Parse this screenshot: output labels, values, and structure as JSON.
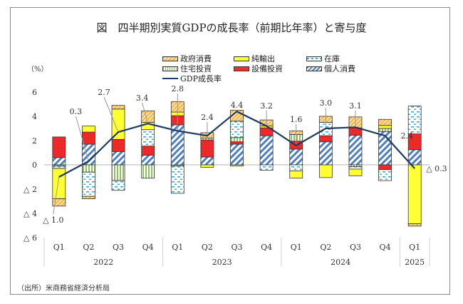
{
  "chart_data": {
    "type": "bar",
    "subtype": "stacked-bar-with-line",
    "title": "図　四半期別実質GDPの成長率（前期比年率）と寄与度",
    "ylabel": "（%）",
    "xlabel": "",
    "ylim": [
      -6,
      6
    ],
    "yticks": [
      6,
      4,
      2,
      0,
      -2,
      -4,
      -6
    ],
    "ytick_labels": [
      "6",
      "4",
      "2",
      "0",
      "△ 2",
      "△ 4",
      "△ 6"
    ],
    "grid": false,
    "legend_position": "top-center",
    "categories": [
      "Q1",
      "Q2",
      "Q3",
      "Q4",
      "Q1",
      "Q2",
      "Q3",
      "Q4",
      "Q1",
      "Q2",
      "Q3",
      "Q4",
      "Q1"
    ],
    "year_groups": [
      {
        "label": "2022",
        "count": 4
      },
      {
        "label": "2023",
        "count": 4
      },
      {
        "label": "2024",
        "count": 4
      },
      {
        "label": "2025",
        "count": 1
      }
    ],
    "series": [
      {
        "name": "個人消費",
        "key": "consumption",
        "color": "#4f7fc0",
        "pattern": "diag",
        "values": [
          0.6,
          1.7,
          1.1,
          0.8,
          3.3,
          0.65,
          1.7,
          2.4,
          1.3,
          1.9,
          2.45,
          2.75,
          1.25
        ]
      },
      {
        "name": "設備投資",
        "key": "capex",
        "color": "#f03030",
        "pattern": "dots",
        "values": [
          1.7,
          1.0,
          1.0,
          0.75,
          0.75,
          1.4,
          0.2,
          0.65,
          0.65,
          0.5,
          0.6,
          -0.4,
          1.3
        ]
      },
      {
        "name": "住宅投資",
        "key": "housing",
        "color": "#8fc060",
        "pattern": "vlines",
        "values": [
          -0.1,
          -0.6,
          -1.3,
          -1.1,
          -0.1,
          0.15,
          0.35,
          0.0,
          0.55,
          0.0,
          -0.15,
          0.25,
          0.0
        ]
      },
      {
        "name": "在庫",
        "key": "inventory",
        "color": "#3aaee0",
        "pattern": "dashes",
        "values": [
          -0.2,
          -2.0,
          -0.8,
          1.35,
          -2.25,
          0.0,
          1.35,
          -0.45,
          -0.5,
          1.1,
          -0.2,
          -0.9,
          2.3
        ]
      },
      {
        "name": "純輸出",
        "key": "net_exports",
        "color": "#ffff33",
        "pattern": "solid",
        "values": [
          -2.5,
          0.5,
          2.5,
          0.6,
          0.3,
          -0.2,
          -0.1,
          0.15,
          -0.6,
          -1.05,
          -0.55,
          0.25,
          -4.85
        ]
      },
      {
        "name": "政府消費",
        "key": "government",
        "color": "#f5b54a",
        "pattern": "diag-light",
        "values": [
          -0.6,
          -0.2,
          0.3,
          0.95,
          0.85,
          0.45,
          0.9,
          0.5,
          0.3,
          0.5,
          0.9,
          0.5,
          -0.2
        ]
      }
    ],
    "line": {
      "name": "GDP成長率",
      "color": "#1f3b63",
      "values": [
        -1.0,
        0.3,
        2.7,
        3.4,
        2.8,
        2.4,
        4.4,
        3.2,
        1.6,
        3.0,
        3.1,
        2.4,
        -0.3
      ],
      "labels": [
        "△ 1.0",
        "0.3",
        "2.7",
        "3.4",
        "2.8",
        "2.4",
        "4.4",
        "3.2",
        "1.6",
        "3.0",
        "3.1",
        "2.4",
        "△ 0.3"
      ]
    }
  },
  "legend": {
    "items": [
      {
        "label": "政府消費",
        "key": "government"
      },
      {
        "label": "純輸出",
        "key": "net_exports"
      },
      {
        "label": "在庫",
        "key": "inventory"
      },
      {
        "label": "住宅投資",
        "key": "housing"
      },
      {
        "label": "設備投資",
        "key": "capex"
      },
      {
        "label": "個人消費",
        "key": "consumption"
      },
      {
        "label": "GDP成長率",
        "key": "gdp_line"
      }
    ]
  },
  "source": "（出所）米商務省経済分析局"
}
